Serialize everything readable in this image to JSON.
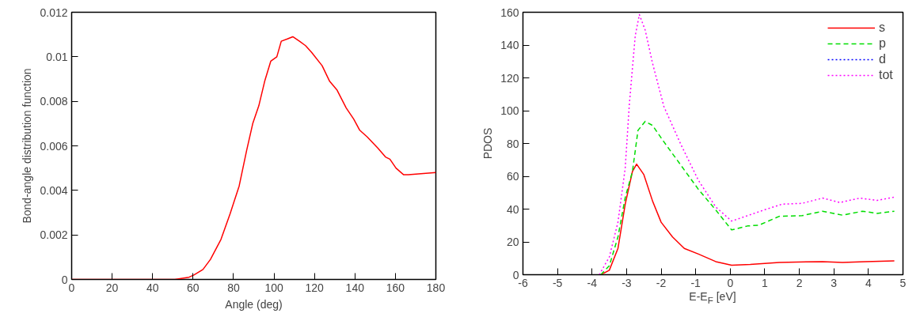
{
  "chart_data": [
    {
      "type": "line",
      "xlabel": "Angle (deg)",
      "ylabel": "Bond-angle distribution function",
      "xlim": [
        0,
        180
      ],
      "ylim": [
        0,
        0.012
      ],
      "xticks": [
        0,
        20,
        40,
        60,
        80,
        100,
        120,
        140,
        160,
        180
      ],
      "yticks": [
        0,
        0.002,
        0.004,
        0.006,
        0.008,
        0.01,
        0.012
      ],
      "grid": false,
      "legend": false,
      "series": [
        {
          "color": "#ff0000",
          "line_style": "solid",
          "x": [
            0,
            51,
            58,
            60.4,
            64.9,
            68.6,
            73.8,
            78.3,
            82.8,
            86.5,
            89.5,
            92.5,
            95.4,
            98.4,
            101.4,
            103.6,
            106.6,
            109.3,
            112.6,
            115.6,
            118.6,
            123.8,
            127.5,
            131.2,
            135.7,
            139.4,
            142.4,
            146.1,
            151.3,
            155.1,
            157.3,
            160.3,
            164.1,
            166.4,
            180
          ],
          "values": [
            0,
            0,
            0.0001,
            0.0002,
            0.00045,
            0.0009,
            0.0018,
            0.00295,
            0.0042,
            0.0058,
            0.007,
            0.0078,
            0.0089,
            0.0098,
            0.01,
            0.0107,
            0.0108,
            0.0109,
            0.0107,
            0.0105,
            0.0102,
            0.0096,
            0.0089,
            0.0085,
            0.0077,
            0.0072,
            0.0067,
            0.0064,
            0.0059,
            0.0055,
            0.0054,
            0.005,
            0.0047,
            0.0047,
            0.0048
          ]
        }
      ]
    },
    {
      "type": "line",
      "xlabel": "E-E$_{F}$ [eV]",
      "ylabel": "PDOS",
      "xlim": [
        -6,
        5
      ],
      "ylim": [
        0,
        160
      ],
      "xticks": [
        -6,
        -5,
        -4,
        -3,
        -2,
        -1,
        0,
        1,
        2,
        3,
        4,
        5
      ],
      "yticks": [
        0,
        20,
        40,
        60,
        80,
        100,
        120,
        140,
        160
      ],
      "grid": false,
      "legend": "top right",
      "series": [
        {
          "name": "s",
          "color": "#ff0000",
          "line_style": "solid",
          "x": [
            -3.75,
            -3.5,
            -3.25,
            -3.04,
            -2.83,
            -2.71,
            -2.5,
            -2.25,
            -2.0,
            -1.67,
            -1.33,
            -0.92,
            -0.42,
            0.04,
            0.58,
            1.42,
            2.67,
            3.25,
            3.92,
            4.75
          ],
          "values": [
            0,
            2.7,
            16,
            43,
            63,
            67.4,
            61,
            45,
            32,
            23,
            16,
            12.6,
            8,
            5.8,
            6.3,
            7.5,
            8,
            7.5,
            8,
            8.4
          ]
        },
        {
          "name": "p",
          "color": "#00dd00",
          "line_style": "dashed",
          "x": [
            -3.75,
            -3.5,
            -3.25,
            -3.04,
            -2.83,
            -2.67,
            -2.46,
            -2.25,
            -1.92,
            -1.42,
            -0.92,
            -0.42,
            0.04,
            0.5,
            0.83,
            1.42,
            2.08,
            2.67,
            3.25,
            3.83,
            4.25,
            4.75
          ],
          "values": [
            0,
            5.4,
            23,
            47,
            63,
            88,
            93.5,
            91,
            81,
            66.5,
            52,
            39.5,
            27.3,
            29.7,
            30.2,
            35.6,
            36,
            38.7,
            36.3,
            38.7,
            37.4,
            38.7
          ]
        },
        {
          "name": "d",
          "color": "#0000ff",
          "line_style": "dotted",
          "values": [
            null
          ]
        },
        {
          "name": "tot",
          "color": "#ff00ff",
          "line_style": "dotted",
          "x": [
            -3.79,
            -3.5,
            -3.25,
            -3.04,
            -2.92,
            -2.75,
            -2.63,
            -2.46,
            -2.25,
            -1.92,
            -1.42,
            -0.92,
            -0.42,
            0.04,
            0.5,
            1.0,
            1.5,
            2.08,
            2.67,
            3.17,
            3.75,
            4.25,
            4.75
          ],
          "values": [
            0,
            10.8,
            32,
            65,
            104,
            145.6,
            158.6,
            149,
            129,
            102.5,
            79,
            57.5,
            41.3,
            32.7,
            36,
            39.6,
            43,
            43.5,
            46.7,
            44,
            46.7,
            45.3,
            47.3
          ]
        }
      ]
    }
  ]
}
